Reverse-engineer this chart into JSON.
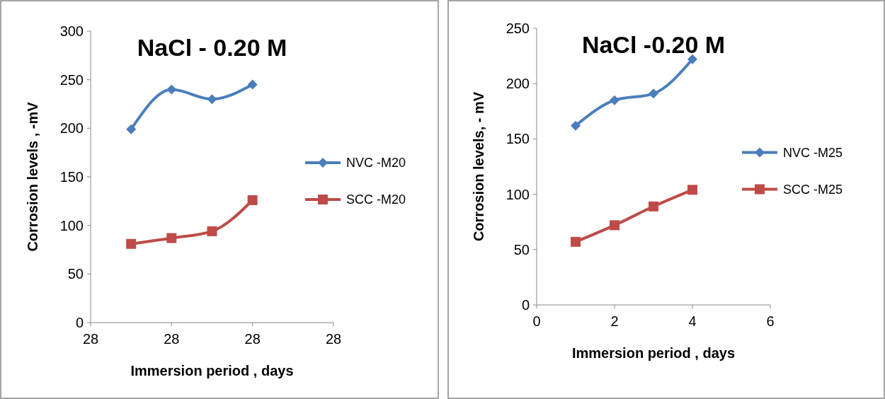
{
  "chart_data": [
    {
      "type": "line",
      "title": "NaCl - 0.20 M",
      "xlabel": "Immersion period , days",
      "ylabel": "Corrosion levels , -mV",
      "categories": [
        "28",
        null,
        "28",
        null,
        "28",
        null,
        "28"
      ],
      "ylim": [
        0,
        300
      ],
      "yticks": [
        0,
        50,
        100,
        150,
        200,
        250,
        300
      ],
      "legend": "right",
      "grid": false,
      "series": [
        {
          "name": "NVC -M20",
          "color": "#4a7ebb",
          "marker": "diamond",
          "values": [
            null,
            199,
            240,
            230,
            245,
            null,
            null
          ]
        },
        {
          "name": "SCC -M20",
          "color": "#be4b48",
          "marker": "square",
          "values": [
            null,
            81,
            87,
            94,
            126,
            null,
            null
          ]
        }
      ]
    },
    {
      "type": "line",
      "title": "NaCl -0.20 M",
      "xlabel": "Immersion period , days",
      "ylabel": "Corrosion levels, - mV",
      "x": [
        1,
        2,
        3,
        4
      ],
      "xlim": [
        0,
        6
      ],
      "xticks": [
        0,
        2,
        4,
        6
      ],
      "ylim": [
        0,
        250
      ],
      "yticks": [
        0,
        50,
        100,
        150,
        200,
        250
      ],
      "legend": "right",
      "grid": false,
      "series": [
        {
          "name": "NVC -M25",
          "color": "#4a7ebb",
          "marker": "diamond",
          "values": [
            162,
            185,
            191,
            222
          ]
        },
        {
          "name": "SCC -M25",
          "color": "#be4b48",
          "marker": "square",
          "values": [
            57,
            72,
            89,
            104
          ]
        }
      ]
    }
  ]
}
